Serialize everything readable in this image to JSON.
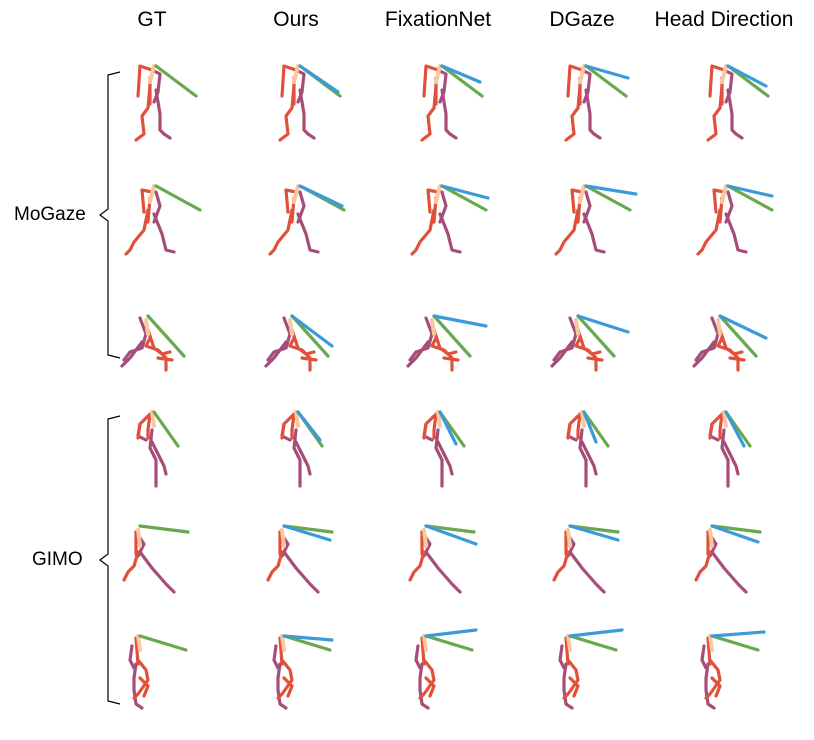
{
  "columns": [
    "GT",
    "Ours",
    "FixationNet",
    "DGaze",
    "Head Direction"
  ],
  "groups": [
    {
      "label": "MoGaze"
    },
    {
      "label": "GIMO"
    }
  ],
  "legend_colors": {
    "ground_truth_gaze": "#6aa84f",
    "predicted_gaze": "#3d9ad9",
    "right_limbs": "#e0503a",
    "left_limbs": "#a64d79",
    "head_neck": "#f6c9a0"
  }
}
